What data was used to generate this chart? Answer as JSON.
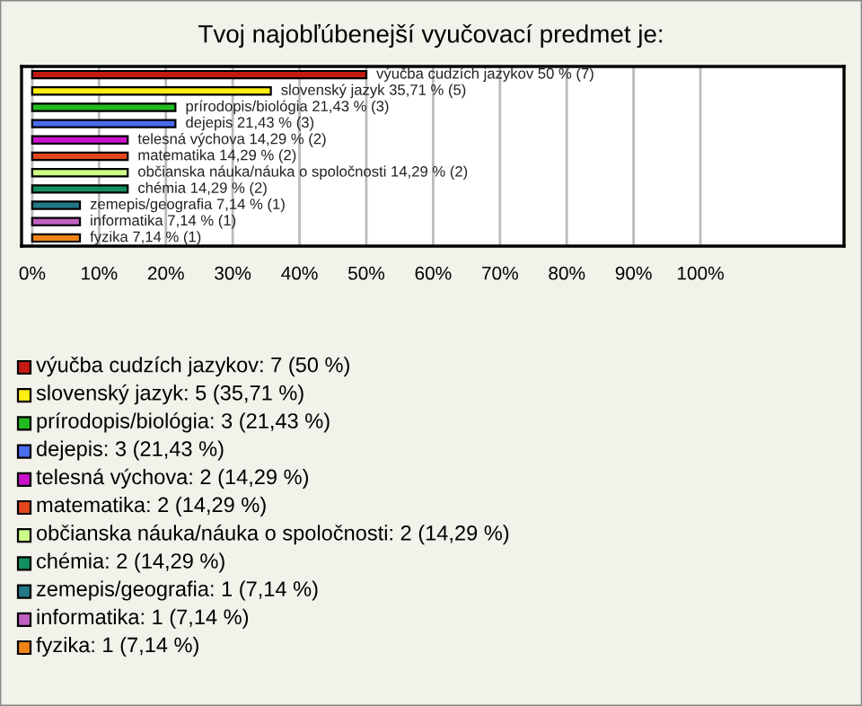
{
  "chart_data": {
    "type": "bar",
    "orientation": "horizontal",
    "title": "Tvoj najobľúbenejší vyučovací predmet je:",
    "categories": [
      null,
      null,
      null,
      null,
      null,
      null,
      null,
      null,
      null,
      null,
      null
    ],
    "values": [
      50,
      35.71,
      21.43,
      21.43,
      14.29,
      14.29,
      14.29,
      14.29,
      7.14,
      7.14,
      7.14
    ],
    "colors": [
      "#c41a12",
      "#ffee11",
      "#22bb22",
      "#4a6ef0",
      "#cc11cc",
      "#e2461a",
      "#ccff88",
      "#139060",
      "#237888",
      "#c060c0",
      "#ee8415"
    ],
    "value_labels": [
      "výučba cudzích jazykov 50 % (7)",
      "slovenský jazyk 35,71 % (5)",
      "prírodopis/biológia 21,43 % (3)",
      "dejepis 21,43 % (3)",
      "telesná výchova 14,29 % (2)",
      "matematika 14,29 % (2)",
      "občianska náuka/náuka o spoločnosti 14,29 % (2)",
      "chémia 14,29 % (2)",
      "zemepis/geografia 7,14 % (1)",
      "informatika 7,14 % (1)",
      "fyzika 7,14 % (1)"
    ],
    "annotations": [
      "výučba cudzích jazykov: 7 (50 %)",
      "slovenský jazyk: 5 (35,71 %)",
      "prírodopis/biológia: 3 (21,43 %)",
      "dejepis: 3 (21,43 %)",
      "telesná výchova: 2 (14,29 %)",
      "matematika: 2 (14,29 %)",
      "občianska náuka/náuka o spoločnosti: 2 (14,29 %)",
      "chémia: 2 (14,29 %)",
      "zemepis/geografia: 1 (7,14 %)",
      "informatika: 1 (7,14 %)",
      "fyzika: 1 (7,14 %)"
    ],
    "xlim": [
      -1.6,
      121.5
    ],
    "xticks": [
      {
        "value": 0,
        "label": "0%"
      },
      {
        "value": 10,
        "label": "10%"
      },
      {
        "value": 20,
        "label": "20%"
      },
      {
        "value": 30,
        "label": "30%"
      },
      {
        "value": 40,
        "label": "40%"
      },
      {
        "value": 50,
        "label": "50%"
      },
      {
        "value": 60,
        "label": "60%"
      },
      {
        "value": 70,
        "label": "70%"
      },
      {
        "value": 80,
        "label": "80%"
      },
      {
        "value": 90,
        "label": "90%"
      },
      {
        "value": 100,
        "label": "100%"
      }
    ],
    "grid": "x",
    "tick_labels": "x"
  }
}
